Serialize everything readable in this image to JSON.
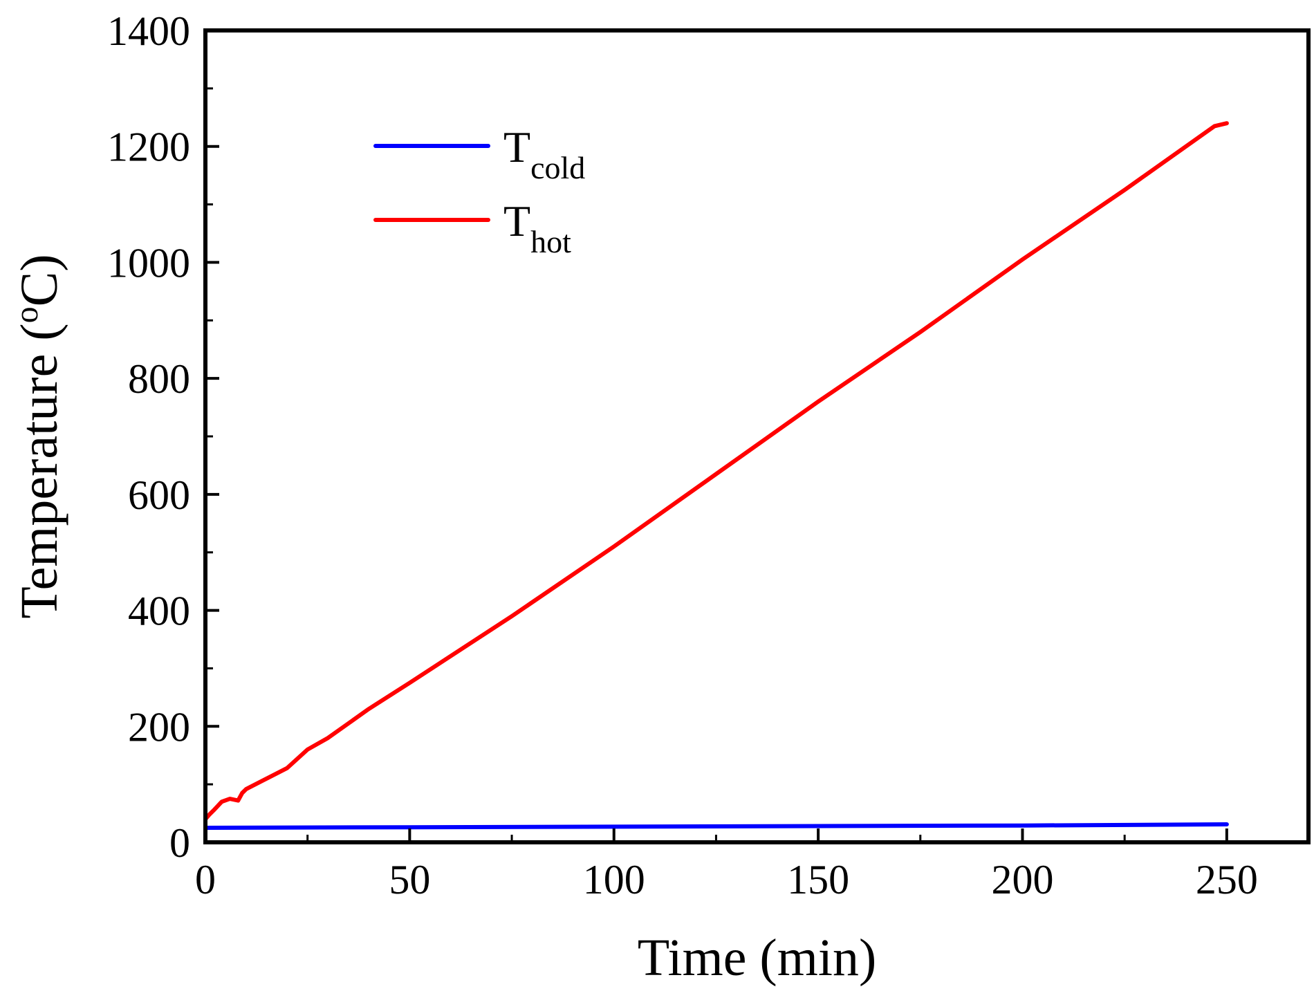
{
  "chart_data": {
    "type": "line",
    "title": "",
    "xlabel": "Time (min)",
    "ylabel": {
      "prefix": "Temperature (",
      "superscript": "o",
      "suffix": "C)"
    },
    "xlim": [
      0,
      270
    ],
    "ylim": [
      0,
      1400
    ],
    "x_ticks": [
      0,
      50,
      100,
      150,
      200,
      250
    ],
    "y_ticks": [
      0,
      200,
      400,
      600,
      800,
      1000,
      1200,
      1400
    ],
    "grid": false,
    "legend_position": "top-left",
    "series": [
      {
        "name": "T_cold",
        "label_main": "T",
        "label_sub": "cold",
        "color": "#0000ff",
        "x": [
          0,
          50,
          100,
          150,
          200,
          250
        ],
        "y": [
          25,
          26,
          27,
          28,
          29,
          31
        ]
      },
      {
        "name": "T_hot",
        "label_main": "T",
        "label_sub": "hot",
        "color": "#ff0000",
        "x": [
          0,
          1,
          2,
          4,
          6,
          8,
          9,
          10,
          15,
          20,
          25,
          30,
          40,
          50,
          75,
          100,
          125,
          150,
          175,
          200,
          225,
          247,
          250
        ],
        "y": [
          40,
          48,
          55,
          70,
          75,
          72,
          85,
          92,
          110,
          128,
          160,
          180,
          230,
          275,
          390,
          510,
          635,
          760,
          880,
          1005,
          1125,
          1235,
          1240
        ]
      }
    ]
  }
}
